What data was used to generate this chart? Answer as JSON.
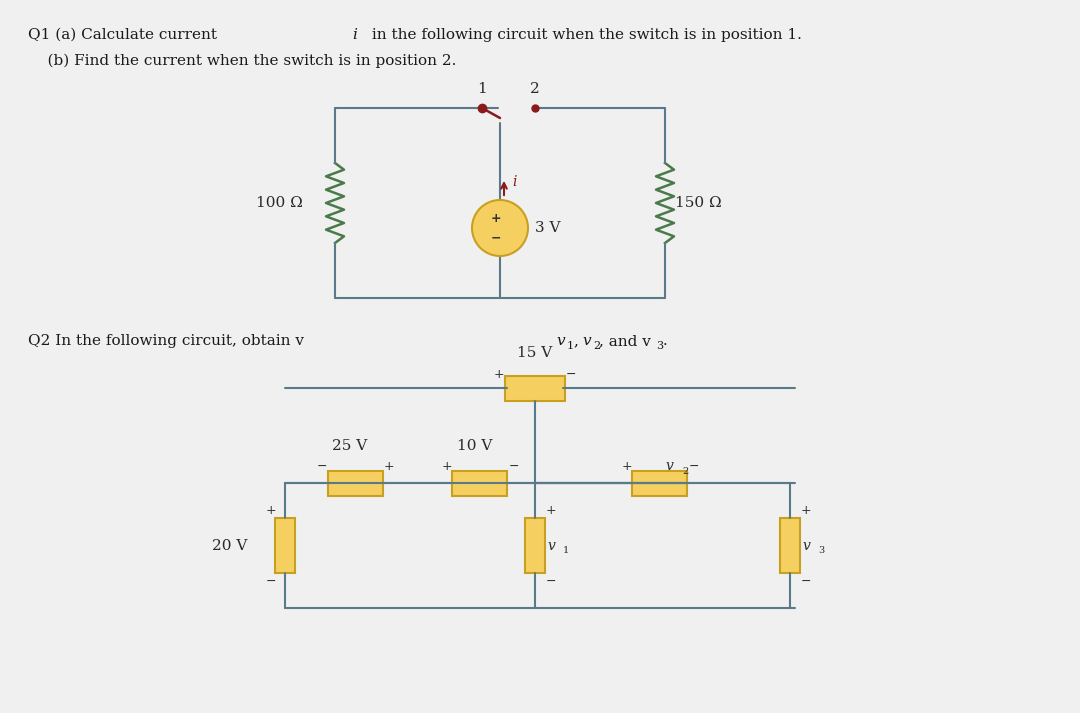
{
  "bg_color": "#f0f0f0",
  "panel_bg": "#ffffff",
  "q1_text_line1": "Q1 (a) Calculate current ",
  "q1_text_italic": "i",
  "q1_text_rest1": " in the following circuit when the switch is in position 1.",
  "q1_text_line2": "    (b) Find the current when the switch is in position 2.",
  "q2_text": "Q2 In the following circuit, obtain v",
  "wire_color": "#5a7a8a",
  "resistor_color": "#4a7a4a",
  "source_fill": "#f5d060",
  "source_border": "#c8a020",
  "switch_color": "#8b1a1a",
  "arrow_color": "#8b1a1a",
  "node_color": "#8b1a1a",
  "text_color": "#1a1a1a",
  "label_color": "#2a2a2a",
  "battery_fill": "#f5d060",
  "battery_border": "#c8a020",
  "element_fill": "#f5d060",
  "element_border": "#c8a020"
}
